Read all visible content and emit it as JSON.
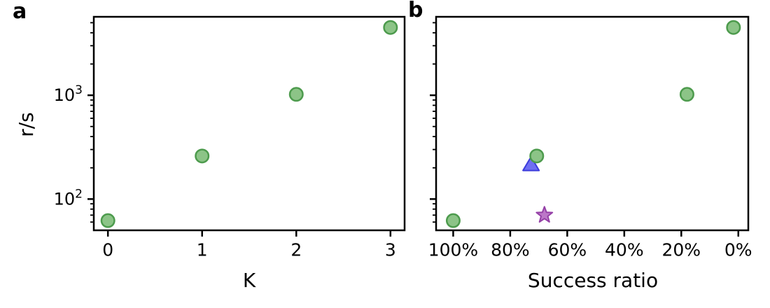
{
  "figure": {
    "panel_a_label": "a",
    "panel_b_label": "b",
    "background": "#ffffff",
    "axis_color": "#000000"
  },
  "chart_data": [
    {
      "id": "a",
      "type": "scatter",
      "title": "",
      "xlabel": "K",
      "ylabel": "r/s",
      "yscale": "log",
      "xlim": [
        -0.15,
        3.15
      ],
      "ylim": [
        50,
        5700
      ],
      "grid": false,
      "legend": "none",
      "x_ticks": [
        {
          "v": 0,
          "label": "0"
        },
        {
          "v": 1,
          "label": "1"
        },
        {
          "v": 2,
          "label": "2"
        },
        {
          "v": 3,
          "label": "3"
        }
      ],
      "y_major_ticks": [
        {
          "v": 100,
          "label": "10^2"
        },
        {
          "v": 1000,
          "label": "10^3"
        }
      ],
      "y_tick_labels_shown": true,
      "y_minor_ticks": [
        60,
        70,
        80,
        90,
        200,
        300,
        400,
        500,
        600,
        700,
        800,
        900,
        2000,
        3000,
        4000,
        5000
      ],
      "series": [
        {
          "name": "runs-per-success-green-circles",
          "marker": "circle",
          "fill": "#8cc487",
          "edge": "#4d9b4d",
          "points": [
            {
              "x": 0,
              "y": 62
            },
            {
              "x": 1,
              "y": 260
            },
            {
              "x": 2,
              "y": 1020
            },
            {
              "x": 3,
              "y": 4500
            }
          ]
        }
      ]
    },
    {
      "id": "b",
      "type": "scatter",
      "title": "",
      "xlabel": "Success ratio",
      "ylabel": "",
      "yscale": "log",
      "xlim": [
        106,
        -3.5
      ],
      "ylim": [
        50,
        5700
      ],
      "grid": false,
      "legend": "none",
      "x_ticks": [
        {
          "v": 100,
          "label": "100%"
        },
        {
          "v": 80,
          "label": "80%"
        },
        {
          "v": 60,
          "label": "60%"
        },
        {
          "v": 40,
          "label": "40%"
        },
        {
          "v": 20,
          "label": "20%"
        },
        {
          "v": 0,
          "label": "0%"
        }
      ],
      "y_major_ticks": [
        {
          "v": 100,
          "label": "10^2"
        },
        {
          "v": 1000,
          "label": "10^3"
        }
      ],
      "y_tick_labels_shown": false,
      "y_minor_ticks": [
        60,
        70,
        80,
        90,
        200,
        300,
        400,
        500,
        600,
        700,
        800,
        900,
        2000,
        3000,
        4000,
        5000
      ],
      "series": [
        {
          "name": "blue-triangle",
          "marker": "triangle-up",
          "fill": "#6f6ff2",
          "edge": "#3c3cdc",
          "points": [
            {
              "x": 72.7,
              "y": 215
            }
          ]
        },
        {
          "name": "purple-star",
          "marker": "star",
          "fill": "#bc77c8",
          "edge": "#943fa6",
          "points": [
            {
              "x": 68,
              "y": 70
            }
          ]
        },
        {
          "name": "runs-per-success-green-circles",
          "marker": "circle",
          "fill": "#8cc487",
          "edge": "#4d9b4d",
          "points": [
            {
              "x": 100,
              "y": 62
            },
            {
              "x": 70.7,
              "y": 260
            },
            {
              "x": 18,
              "y": 1020
            },
            {
              "x": 1.7,
              "y": 4500
            }
          ]
        }
      ]
    }
  ]
}
